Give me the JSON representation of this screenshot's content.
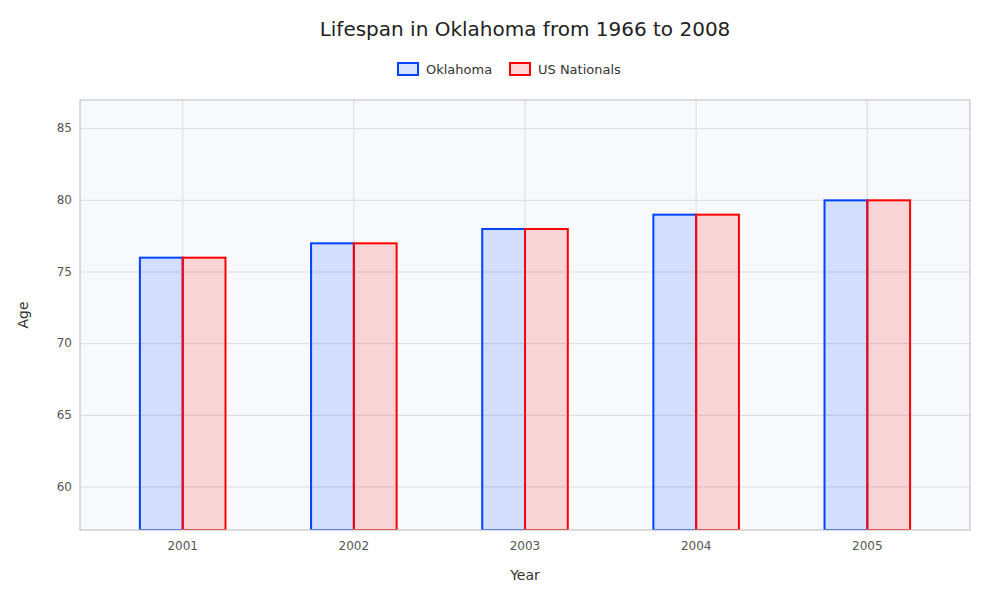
{
  "chart_data": {
    "type": "bar",
    "title": "Lifespan in Oklahoma from 1966 to 2008",
    "xlabel": "Year",
    "ylabel": "Age",
    "categories": [
      "2001",
      "2002",
      "2003",
      "2004",
      "2005"
    ],
    "series": [
      {
        "name": "Oklahoma",
        "color": "#0044ff",
        "values": [
          76,
          77,
          78,
          79,
          80
        ]
      },
      {
        "name": "US Nationals",
        "color": "#ff0000",
        "values": [
          76,
          77,
          78,
          79,
          80
        ]
      }
    ],
    "ylim": [
      57,
      87
    ],
    "yticks": [
      60,
      65,
      70,
      75,
      80,
      85
    ],
    "grid": true,
    "legend": "top"
  }
}
